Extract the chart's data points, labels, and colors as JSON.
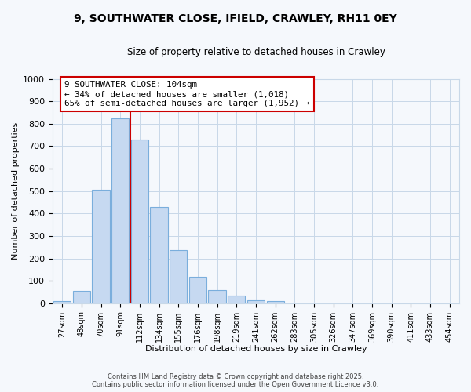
{
  "title": "9, SOUTHWATER CLOSE, IFIELD, CRAWLEY, RH11 0EY",
  "subtitle": "Size of property relative to detached houses in Crawley",
  "xlabel": "Distribution of detached houses by size in Crawley",
  "ylabel": "Number of detached properties",
  "bar_labels": [
    "27sqm",
    "48sqm",
    "70sqm",
    "91sqm",
    "112sqm",
    "134sqm",
    "155sqm",
    "176sqm",
    "198sqm",
    "219sqm",
    "241sqm",
    "262sqm",
    "283sqm",
    "305sqm",
    "326sqm",
    "347sqm",
    "369sqm",
    "390sqm",
    "411sqm",
    "433sqm",
    "454sqm"
  ],
  "bar_values": [
    8,
    55,
    505,
    825,
    730,
    430,
    238,
    118,
    57,
    35,
    12,
    10,
    0,
    0,
    0,
    0,
    0,
    0,
    0,
    0,
    0
  ],
  "bar_color": "#c6d9f1",
  "bar_edge_color": "#7aaedc",
  "vline_color": "#cc0000",
  "vline_index": 3.5,
  "annotation_title": "9 SOUTHWATER CLOSE: 104sqm",
  "annotation_line1": "← 34% of detached houses are smaller (1,018)",
  "annotation_line2": "65% of semi-detached houses are larger (1,952) →",
  "annotation_box_color": "#ffffff",
  "annotation_box_edge": "#cc0000",
  "ylim": [
    0,
    1000
  ],
  "yticks": [
    0,
    100,
    200,
    300,
    400,
    500,
    600,
    700,
    800,
    900,
    1000
  ],
  "footer1": "Contains HM Land Registry data © Crown copyright and database right 2025.",
  "footer2": "Contains public sector information licensed under the Open Government Licence v3.0.",
  "bg_color": "#f5f8fc",
  "grid_color": "#c8d8e8"
}
